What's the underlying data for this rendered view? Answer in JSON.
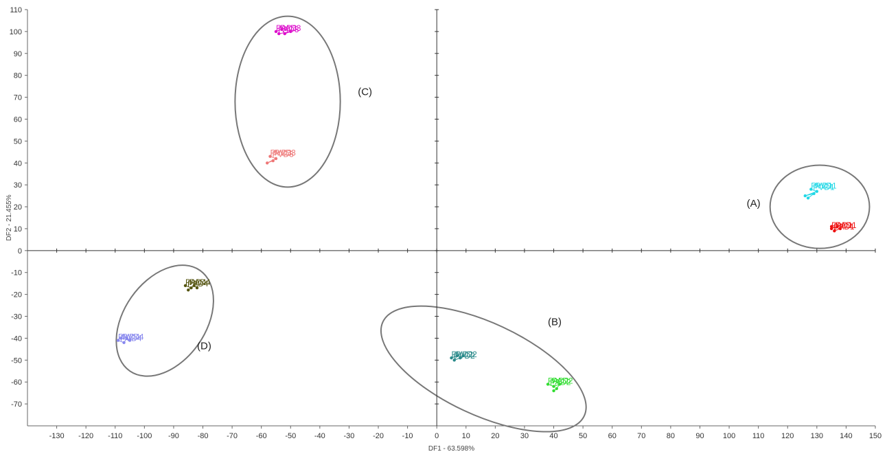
{
  "chart_data": {
    "type": "scatter",
    "xlabel": "DF1 - 63.598%",
    "ylabel": "DF2 - 21.455%",
    "xlim": [
      -140,
      150
    ],
    "ylim": [
      -80,
      110
    ],
    "x_ticks": [
      -130,
      -120,
      -110,
      -100,
      -90,
      -80,
      -70,
      -60,
      -50,
      -40,
      -30,
      -20,
      -10,
      0,
      10,
      20,
      30,
      40,
      50,
      60,
      70,
      80,
      90,
      100,
      110,
      120,
      130,
      140,
      150
    ],
    "y_ticks": [
      110,
      100,
      90,
      80,
      70,
      60,
      50,
      40,
      30,
      20,
      10,
      0,
      -10,
      -20,
      -30,
      -40,
      -50,
      -60,
      -70
    ],
    "grid": false,
    "series": [
      {
        "name": "PVD1",
        "color": "#22d8e6",
        "labels": [
          "PVD1",
          "PVD1",
          "PVD1"
        ],
        "points": [
          [
            128,
            28
          ],
          [
            130,
            27
          ],
          [
            126,
            25
          ],
          [
            129,
            26
          ],
          [
            127,
            24
          ]
        ]
      },
      {
        "name": "PAD1",
        "color": "#ee1111",
        "labels": [
          "PAD1",
          "PAD1",
          "PAD1"
        ],
        "points": [
          [
            135,
            10
          ],
          [
            137,
            11
          ],
          [
            136,
            9
          ],
          [
            138,
            10
          ],
          [
            135,
            11
          ]
        ]
      },
      {
        "name": "PVD2",
        "color": "#2a8a8a",
        "labels": [
          "PVD2",
          "PVD2",
          "PVD2"
        ],
        "points": [
          [
            5,
            -49
          ],
          [
            7,
            -48
          ],
          [
            6,
            -50
          ],
          [
            8,
            -49
          ],
          [
            9,
            -48
          ]
        ]
      },
      {
        "name": "PAD2",
        "color": "#33dd33",
        "labels": [
          "PAD2",
          "PAD2",
          "PAD2"
        ],
        "points": [
          [
            38,
            -61
          ],
          [
            40,
            -62
          ],
          [
            42,
            -61
          ],
          [
            41,
            -63
          ],
          [
            40,
            -64
          ]
        ]
      },
      {
        "name": "PAD3",
        "color": "#dd11cc",
        "labels": [
          "PAD3",
          "PAD3",
          "PAD3"
        ],
        "points": [
          [
            -55,
            100
          ],
          [
            -53,
            101
          ],
          [
            -52,
            99
          ],
          [
            -50,
            100
          ],
          [
            -54,
            99
          ]
        ]
      },
      {
        "name": "PVD3",
        "color": "#ee7777",
        "labels": [
          "PVD3",
          "PVD3",
          "PVD3"
        ],
        "points": [
          [
            -57,
            43
          ],
          [
            -55,
            42
          ],
          [
            -58,
            40
          ],
          [
            -56,
            41
          ]
        ]
      },
      {
        "name": "PAD4",
        "color": "#555511",
        "labels": [
          "PAD4",
          "PAD4",
          "PAD4"
        ],
        "points": [
          [
            -86,
            -16
          ],
          [
            -84,
            -17
          ],
          [
            -85,
            -18
          ],
          [
            -83,
            -16
          ],
          [
            -82,
            -17
          ]
        ]
      },
      {
        "name": "PVD4",
        "color": "#8888ee",
        "labels": [
          "PVD4",
          "PVD4",
          "PVD4"
        ],
        "points": [
          [
            -109,
            -41
          ],
          [
            -107,
            -42
          ],
          [
            -106,
            -40
          ],
          [
            -105,
            -41
          ],
          [
            -108,
            -40
          ]
        ]
      }
    ],
    "annotations": [
      {
        "text": "(A)",
        "x": 106,
        "y": 20
      },
      {
        "text": "(B)",
        "x": 38,
        "y": -34
      },
      {
        "text": "(C)",
        "x": -27,
        "y": 71
      },
      {
        "text": "(D)",
        "x": -82,
        "y": -45
      }
    ],
    "ellipses": [
      {
        "cx": 131,
        "cy": 20,
        "rx": 17,
        "ry": 19
      },
      {
        "cx": 16,
        "cy": -54,
        "rx": 38,
        "ry": 21,
        "rotate": 25
      },
      {
        "cx": -51,
        "cy": 68,
        "rx": 18,
        "ry": 39
      },
      {
        "cx": -93,
        "cy": -32,
        "rx": 14,
        "ry": 28,
        "rotate": 35
      }
    ]
  }
}
